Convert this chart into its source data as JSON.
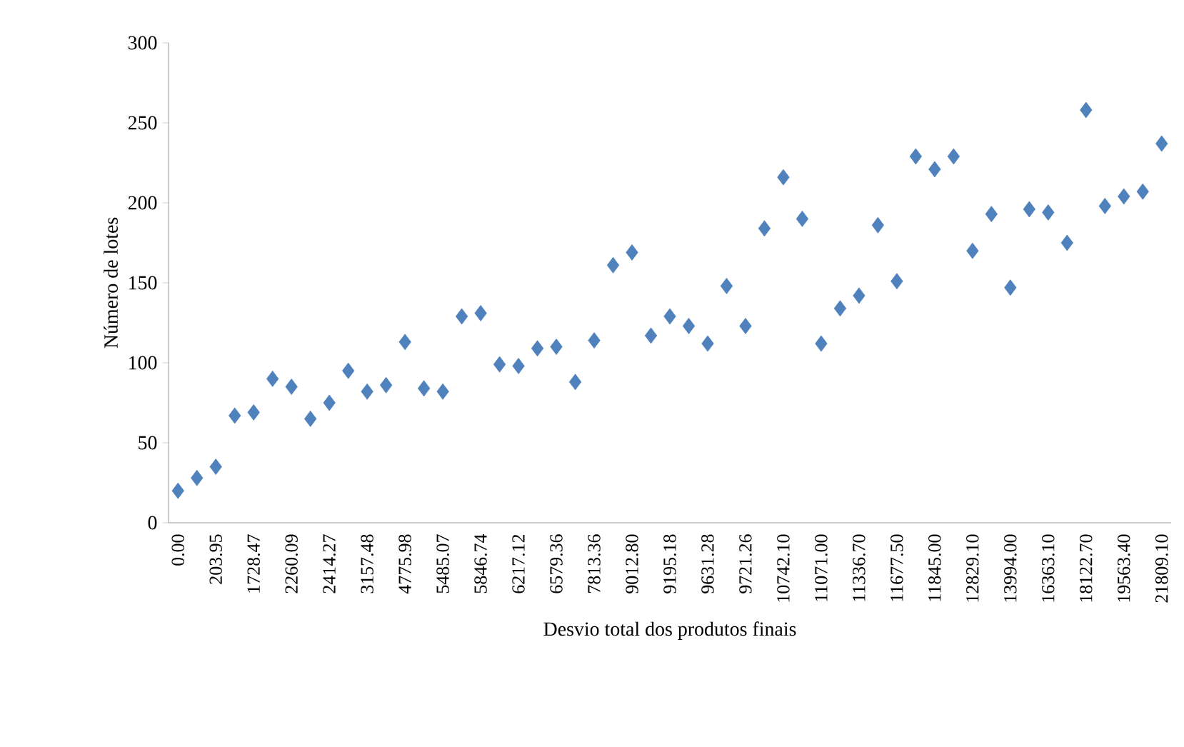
{
  "chart_data": {
    "type": "scatter",
    "xlabel": "Desvio total dos produtos finais",
    "ylabel": "Número de lotes",
    "categories": [
      "0.00",
      null,
      "203.95",
      null,
      "1728.47",
      null,
      "2260.09",
      null,
      "2414.27",
      null,
      "3157.48",
      null,
      "4775.98",
      null,
      "5485.07",
      null,
      "5846.74",
      null,
      "6217.12",
      null,
      "6579.36",
      null,
      "7813.36",
      null,
      "9012.80",
      null,
      "9195.18",
      null,
      "9631.28",
      null,
      "9721.26",
      null,
      "10742.10",
      null,
      "11071.00",
      null,
      "11336.70",
      null,
      "11677.50",
      null,
      "11845.00",
      null,
      "12829.10",
      null,
      "13994.00",
      null,
      "16363.10",
      null,
      "18122.70",
      null,
      "19563.40",
      null,
      "21809.10"
    ],
    "values": [
      20,
      28,
      35,
      67,
      69,
      90,
      85,
      65,
      75,
      95,
      82,
      86,
      113,
      84,
      82,
      129,
      131,
      99,
      98,
      109,
      110,
      88,
      114,
      161,
      169,
      117,
      129,
      123,
      112,
      148,
      123,
      184,
      216,
      190,
      112,
      134,
      142,
      186,
      151,
      229,
      221,
      229,
      170,
      193,
      147,
      196,
      194,
      175,
      258,
      198,
      204,
      207,
      237
    ],
    "color": "#4f81bd",
    "marker": "diamond",
    "ylim": [
      0,
      300
    ],
    "yticks": [
      0,
      50,
      100,
      150,
      200,
      250,
      300
    ]
  }
}
